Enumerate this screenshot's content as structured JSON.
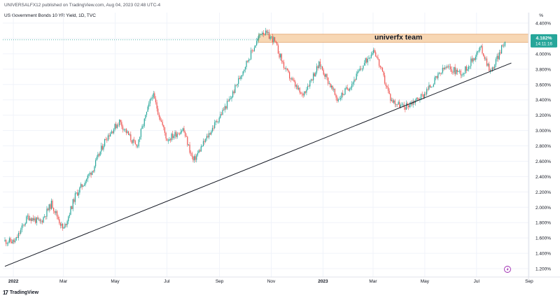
{
  "header": {
    "publish_line": "UNIVERSALFX12 published on TradingView.com, Aug 04, 2023 02:48 UTC-4",
    "symbol_legend": "US Government Bonds 10 YR Yield, 1D, TVC",
    "unit_label": "%"
  },
  "price_badge": {
    "price": "4.182%",
    "countdown": "14:11:16",
    "color": "#26a69a"
  },
  "annotation": {
    "label": "univerfx team",
    "fill": "#f7d7b4",
    "border": "#e3a36a"
  },
  "footer": {
    "brand": "TradingView",
    "brand_mark": "17"
  },
  "icons": {
    "lightning": "lightning-icon"
  },
  "colors": {
    "up": "#26a69a",
    "down": "#ef5350",
    "trendline": "#131722",
    "last_price_line": "#26a69a"
  },
  "chart_data": {
    "type": "candlestick",
    "x_tick_labels": [
      "2022",
      "Mar",
      "May",
      "Jul",
      "Sep",
      "Nov",
      "2023",
      "Mar",
      "May",
      "Jul",
      "Sep"
    ],
    "y_tick_labels": [
      "4.400%",
      "4.200%",
      "4.000%",
      "3.800%",
      "3.600%",
      "3.400%",
      "3.200%",
      "3.000%",
      "2.800%",
      "2.600%",
      "2.400%",
      "2.200%",
      "2.000%",
      "1.800%",
      "1.600%",
      "1.400%",
      "1.200%"
    ],
    "ylim": [
      1.1,
      4.45
    ],
    "last_price": 4.182,
    "resistance_zone": {
      "from": "2022-10-17",
      "to": "2023-08-04",
      "low": 4.15,
      "high": 4.255
    },
    "trendline": {
      "start": {
        "date": "2021-12-22",
        "value": 1.23
      },
      "end": {
        "date": "2023-08-11",
        "value": 3.88
      }
    },
    "price_path": [
      {
        "date": "2021-12-22",
        "value": 1.56
      },
      {
        "date": "2022-01-03",
        "value": 1.55
      },
      {
        "date": "2022-01-18",
        "value": 1.88
      },
      {
        "date": "2022-02-02",
        "value": 1.8
      },
      {
        "date": "2022-02-15",
        "value": 2.05
      },
      {
        "date": "2022-03-01",
        "value": 1.7
      },
      {
        "date": "2022-03-15",
        "value": 2.15
      },
      {
        "date": "2022-04-05",
        "value": 2.5
      },
      {
        "date": "2022-04-20",
        "value": 2.9
      },
      {
        "date": "2022-05-06",
        "value": 3.12
      },
      {
        "date": "2022-05-26",
        "value": 2.78
      },
      {
        "date": "2022-06-14",
        "value": 3.48
      },
      {
        "date": "2022-07-01",
        "value": 2.88
      },
      {
        "date": "2022-07-20",
        "value": 3.02
      },
      {
        "date": "2022-08-01",
        "value": 2.6
      },
      {
        "date": "2022-08-22",
        "value": 3.0
      },
      {
        "date": "2022-09-14",
        "value": 3.42
      },
      {
        "date": "2022-09-30",
        "value": 3.82
      },
      {
        "date": "2022-10-21",
        "value": 4.3
      },
      {
        "date": "2022-11-04",
        "value": 4.18
      },
      {
        "date": "2022-11-18",
        "value": 3.78
      },
      {
        "date": "2022-12-07",
        "value": 3.45
      },
      {
        "date": "2022-12-28",
        "value": 3.87
      },
      {
        "date": "2023-01-18",
        "value": 3.4
      },
      {
        "date": "2023-02-03",
        "value": 3.6
      },
      {
        "date": "2023-03-02",
        "value": 4.07
      },
      {
        "date": "2023-03-22",
        "value": 3.4
      },
      {
        "date": "2023-04-06",
        "value": 3.3
      },
      {
        "date": "2023-04-28",
        "value": 3.45
      },
      {
        "date": "2023-05-25",
        "value": 3.82
      },
      {
        "date": "2023-06-15",
        "value": 3.75
      },
      {
        "date": "2023-07-06",
        "value": 4.08
      },
      {
        "date": "2023-07-18",
        "value": 3.76
      },
      {
        "date": "2023-08-04",
        "value": 4.18
      }
    ]
  }
}
